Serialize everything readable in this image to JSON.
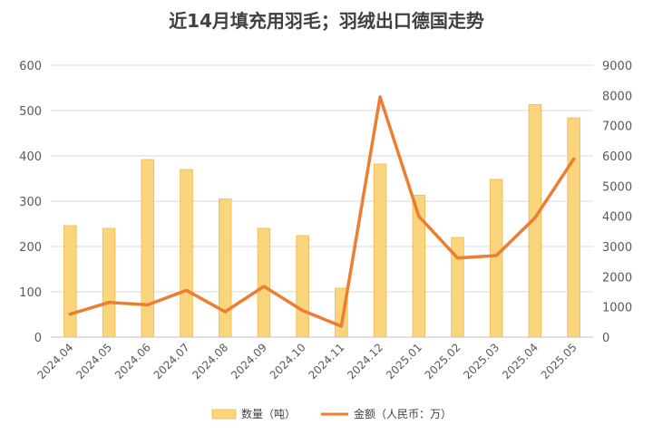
{
  "chart_data": {
    "type": "bar",
    "title": "近14月填充用羽毛；羽绒出口德国走势",
    "categories": [
      "2024.04",
      "2024.05",
      "2024.06",
      "2024.07",
      "2024.08",
      "2024.09",
      "2024.10",
      "2024.11",
      "2024.12",
      "2025.01",
      "2025.02",
      "2025.03",
      "2025.04",
      "2025.05"
    ],
    "series": [
      {
        "name": "数量（吨）",
        "type": "bar",
        "axis": "left",
        "color": "#fbd47e",
        "values": [
          246,
          240,
          392,
          370,
          305,
          240,
          224,
          108,
          382,
          313,
          220,
          348,
          513,
          484
        ]
      },
      {
        "name": "金额（人民币：万）",
        "type": "line",
        "axis": "right",
        "color": "#ed7d31",
        "values": [
          760,
          1150,
          1070,
          1550,
          840,
          1680,
          880,
          360,
          7950,
          4000,
          2620,
          2700,
          3950,
          5900
        ]
      }
    ],
    "ylim_left": [
      0,
      600
    ],
    "yticks_left": [
      "0",
      "100",
      "200",
      "300",
      "400",
      "500",
      "600"
    ],
    "ylim_right": [
      0,
      9000
    ],
    "yticks_right": [
      "0",
      "1000",
      "2000",
      "3000",
      "4000",
      "5000",
      "6000",
      "7000",
      "8000",
      "9000"
    ],
    "grid": true,
    "legend_position": "bottom"
  }
}
